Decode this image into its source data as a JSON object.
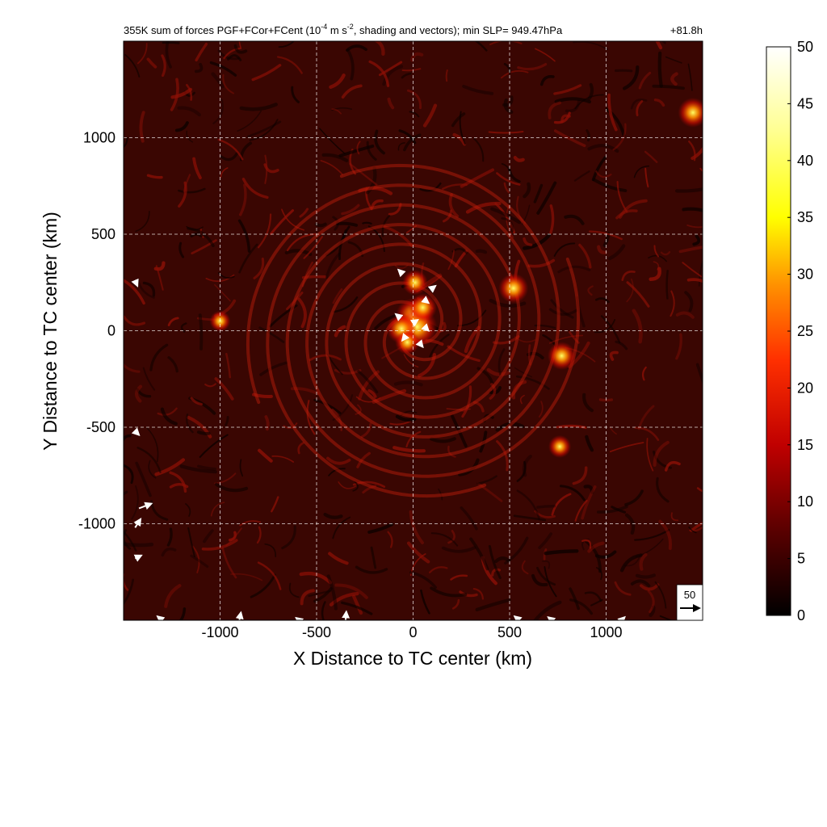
{
  "chart_data": {
    "type": "heatmap",
    "title_prefix": "355K sum of forces PGF+FCor+FCent (10",
    "title_exp1": "-4",
    "title_mid": " m s",
    "title_exp2": "-2",
    "title_suffix": ", shading and vectors); min SLP= 949.47hPa",
    "time_label": "+81.8h",
    "xlabel": "X Distance to TC center (km)",
    "ylabel": "Y Distance to TC center (km)",
    "xlim": [
      -1500,
      1500
    ],
    "ylim": [
      -1500,
      1500
    ],
    "x_ticks": [
      -1000,
      -500,
      0,
      500,
      1000
    ],
    "x_tick_labels": [
      "-1000",
      "-500",
      "0",
      "500",
      "1000"
    ],
    "y_ticks": [
      1000,
      500,
      0,
      -500,
      -1000
    ],
    "y_tick_labels": [
      "1000",
      "500",
      "0",
      "-500",
      "-1000"
    ],
    "grid": true,
    "colorbar": {
      "range": [
        0,
        50
      ],
      "ticks": [
        0,
        5,
        10,
        15,
        20,
        25,
        30,
        35,
        40,
        45,
        50
      ],
      "tick_labels": [
        "0",
        "5",
        "10",
        "15",
        "20",
        "25",
        "30",
        "35",
        "40",
        "45",
        "50"
      ],
      "colors": [
        "#000000",
        "#8b0000",
        "#ff2000",
        "#ff8c00",
        "#ffff00",
        "#ffffff"
      ]
    },
    "reference_vector": {
      "label": "50",
      "magnitude": 50
    },
    "hotspots": [
      {
        "x": 0,
        "y": 80,
        "value": 35
      },
      {
        "x": 20,
        "y": 20,
        "value": 42
      },
      {
        "x": -60,
        "y": 10,
        "value": 30
      },
      {
        "x": 10,
        "y": 250,
        "value": 25
      },
      {
        "x": 50,
        "y": 120,
        "value": 28
      },
      {
        "x": -30,
        "y": -60,
        "value": 24
      },
      {
        "x": 520,
        "y": 220,
        "value": 30
      },
      {
        "x": 770,
        "y": -130,
        "value": 28
      },
      {
        "x": 760,
        "y": -600,
        "value": 22
      },
      {
        "x": 1450,
        "y": 1130,
        "value": 30
      },
      {
        "x": -1000,
        "y": 50,
        "value": 20
      }
    ],
    "vectors": [
      {
        "x": -1420,
        "y": -920,
        "u": 32,
        "v": 12
      },
      {
        "x": -1440,
        "y": -1020,
        "u": 14,
        "v": 22
      },
      {
        "x": -1440,
        "y": -1180,
        "u": 16,
        "v": 8
      },
      {
        "x": -900,
        "y": -1500,
        "u": 4,
        "v": 20
      },
      {
        "x": -350,
        "y": -1500,
        "u": 2,
        "v": 22
      },
      {
        "x": -1300,
        "y": -1500,
        "u": -12,
        "v": 10
      },
      {
        "x": 550,
        "y": -1500,
        "u": -12,
        "v": 10
      },
      {
        "x": 720,
        "y": -1500,
        "u": -10,
        "v": 8
      },
      {
        "x": 1080,
        "y": -1500,
        "u": 8,
        "v": 8
      },
      {
        "x": -590,
        "y": -1500,
        "u": -8,
        "v": 6
      },
      {
        "x": -1440,
        "y": -520,
        "u": 10,
        "v": -10
      },
      {
        "x": -1440,
        "y": 260,
        "u": 6,
        "v": -14
      },
      {
        "x": 0,
        "y": 40,
        "u": 12,
        "v": 8
      },
      {
        "x": 60,
        "y": 20,
        "u": 10,
        "v": -10
      },
      {
        "x": -40,
        "y": -30,
        "u": -8,
        "v": -10
      },
      {
        "x": 30,
        "y": -60,
        "u": 10,
        "v": -12
      },
      {
        "x": -70,
        "y": 70,
        "u": -10,
        "v": 8
      },
      {
        "x": 60,
        "y": 160,
        "u": 10,
        "v": -8
      },
      {
        "x": -60,
        "y": 300,
        "u": -8,
        "v": 8
      },
      {
        "x": 100,
        "y": 220,
        "u": 8,
        "v": 6
      }
    ]
  }
}
